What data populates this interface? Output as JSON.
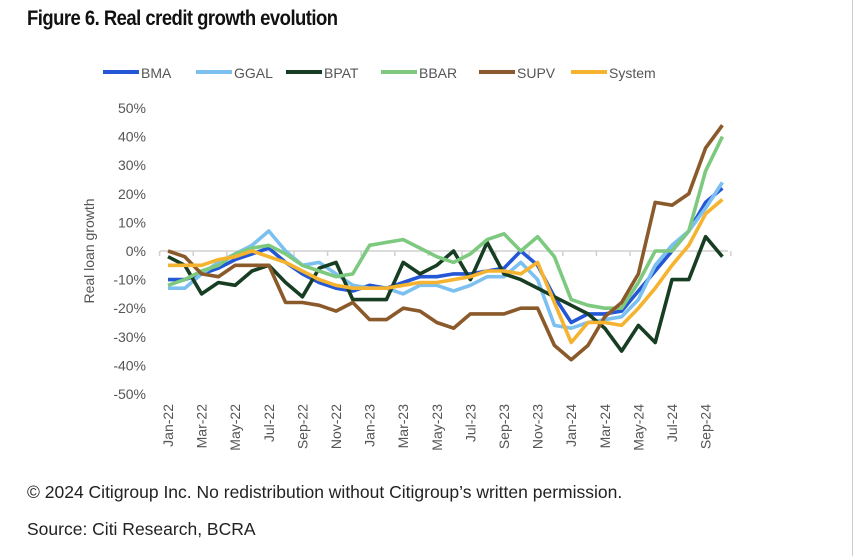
{
  "title": "Figure 6. Real credit growth evolution",
  "footer": {
    "copyright": "© 2024 Citigroup Inc. No redistribution without Citigroup’s written permission.",
    "source": "Source: Citi Research, BCRA"
  },
  "chart_data": {
    "type": "line",
    "title": "",
    "xlabel": "",
    "ylabel": "Real loan growth",
    "ylim": [
      -50,
      50
    ],
    "yticks": [
      "-50%",
      "-40%",
      "-30%",
      "-20%",
      "-10%",
      "0%",
      "10%",
      "20%",
      "30%",
      "40%",
      "50%"
    ],
    "ytick_values": [
      -50,
      -40,
      -30,
      -20,
      -10,
      0,
      10,
      20,
      30,
      40,
      50
    ],
    "x": [
      "Jan-22",
      "Feb-22",
      "Mar-22",
      "Apr-22",
      "May-22",
      "Jun-22",
      "Jul-22",
      "Aug-22",
      "Sep-22",
      "Oct-22",
      "Nov-22",
      "Dec-22",
      "Jan-23",
      "Feb-23",
      "Mar-23",
      "Apr-23",
      "May-23",
      "Jun-23",
      "Jul-23",
      "Aug-23",
      "Sep-23",
      "Oct-23",
      "Nov-23",
      "Dec-23",
      "Jan-24",
      "Feb-24",
      "Mar-24",
      "Apr-24",
      "May-24",
      "Jun-24",
      "Jul-24",
      "Aug-24",
      "Sep-24",
      "Oct-24"
    ],
    "xtick_labels": [
      "Jan-22",
      "Mar-22",
      "May-22",
      "Jul-22",
      "Sep-22",
      "Nov-22",
      "Jan-23",
      "Mar-23",
      "May-23",
      "Jul-23",
      "Sep-23",
      "Nov-23",
      "Jan-24",
      "Mar-24",
      "May-24",
      "Jul-24",
      "Sep-24"
    ],
    "grid": false,
    "legend_position": "top",
    "series": [
      {
        "name": "BMA",
        "color": "#2457d6",
        "values": [
          -10,
          -10,
          -8,
          -6,
          -3,
          -1,
          1,
          -4,
          -8,
          -11,
          -13,
          -14,
          -12,
          -13,
          -11,
          -9,
          -9,
          -8,
          -8,
          -7,
          -6,
          0,
          -5,
          -16,
          -25,
          -22,
          -22,
          -21,
          -14,
          -7,
          0,
          7,
          17,
          22
        ]
      },
      {
        "name": "GGAL",
        "color": "#7cc0f0",
        "values": [
          -13,
          -13,
          -8,
          -4,
          -1,
          2,
          7,
          0,
          -5,
          -4,
          -8,
          -12,
          -13,
          -13,
          -15,
          -12,
          -12,
          -14,
          -12,
          -9,
          -9,
          -4,
          -10,
          -26,
          -27,
          -25,
          -24,
          -23,
          -17,
          -5,
          2,
          7,
          15,
          24
        ]
      },
      {
        "name": "BPAT",
        "color": "#173d22",
        "values": [
          -2,
          -5,
          -15,
          -11,
          -12,
          -7,
          -5,
          -11,
          -16,
          -6,
          -4,
          -17,
          -17,
          -17,
          -4,
          -8,
          -5,
          0,
          -10,
          3,
          -8,
          -10,
          -13,
          -16,
          -19,
          -22,
          -27,
          -35,
          -26,
          -32,
          -10,
          -10,
          5,
          -2
        ]
      },
      {
        "name": "BBAR",
        "color": "#7dc97f",
        "values": [
          -12,
          -10,
          -7,
          -5,
          -1,
          1,
          2,
          -1,
          -5,
          -7,
          -9,
          -8,
          2,
          3,
          4,
          1,
          -2,
          -4,
          -1,
          4,
          6,
          0,
          5,
          -2,
          -17,
          -19,
          -20,
          -20,
          -11,
          0,
          0,
          7,
          28,
          40
        ]
      },
      {
        "name": "SUPV",
        "color": "#8b5a2b",
        "values": [
          0,
          -2,
          -8,
          -9,
          -5,
          -5,
          -5,
          -18,
          -18,
          -19,
          -21,
          -18,
          -24,
          -24,
          -20,
          -21,
          -25,
          -27,
          -22,
          -22,
          -22,
          -20,
          -20,
          -33,
          -38,
          -33,
          -23,
          -18,
          -8,
          17,
          16,
          20,
          36,
          44
        ]
      },
      {
        "name": "System",
        "color": "#f5b330",
        "values": [
          -5,
          -5,
          -5,
          -3,
          -2,
          0,
          -2,
          -4,
          -7,
          -10,
          -12,
          -13,
          -13,
          -13,
          -12,
          -11,
          -11,
          -10,
          -9,
          -7,
          -7,
          -8,
          -4,
          -18,
          -32,
          -25,
          -25,
          -26,
          -20,
          -13,
          -5,
          2,
          13,
          18
        ]
      }
    ]
  }
}
